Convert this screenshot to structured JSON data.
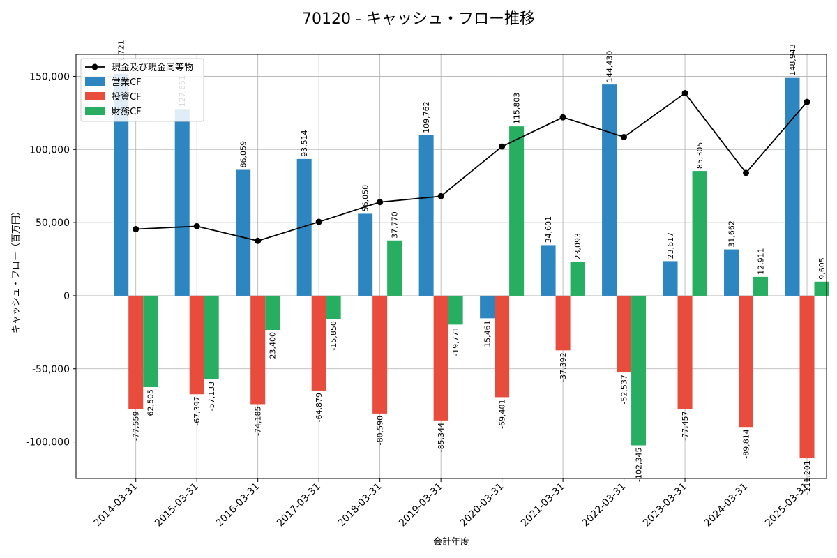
{
  "chart_data": {
    "type": "bar",
    "title": "70120 - キャッシュ・フロー推移",
    "xlabel": "会計年度",
    "ylabel": "キャッシュ・フロー（百万円）",
    "ylim": [
      -125000,
      165000
    ],
    "yticks": [
      -100000,
      -50000,
      0,
      50000,
      100000,
      150000
    ],
    "ytick_labels": [
      "-100,000",
      "-50,000",
      "0",
      "50,000",
      "100,000",
      "150,000"
    ],
    "grid": true,
    "legend_position": "top-left",
    "categories": [
      "2014-03-31",
      "2015-03-31",
      "2016-03-31",
      "2017-03-31",
      "2018-03-31",
      "2019-03-31",
      "2020-03-31",
      "2021-03-31",
      "2022-03-31",
      "2023-03-31",
      "2024-03-31",
      "2025-03-31"
    ],
    "series": [
      {
        "name": "営業CF",
        "kind": "bar",
        "color": "#2e86c1",
        "values": [
          151721,
          127651,
          86059,
          93514,
          56050,
          109762,
          -15461,
          34601,
          144430,
          23617,
          31662,
          148943
        ],
        "labels": [
          "151,721",
          "127,651",
          "86,059",
          "93,514",
          "56,050",
          "109,762",
          "-15,461",
          "34,601",
          "144,430",
          "23,617",
          "31,662",
          "148,943"
        ]
      },
      {
        "name": "投資CF",
        "kind": "bar",
        "color": "#e74c3c",
        "values": [
          -77559,
          -67397,
          -74185,
          -64879,
          -80590,
          -85344,
          -69401,
          -37392,
          -52537,
          -77457,
          -89814,
          -111201
        ],
        "labels": [
          "-77,559",
          "-67,397",
          "-74,185",
          "-64,879",
          "-80,590",
          "-85,344",
          "-69,401",
          "-37,392",
          "-52,537",
          "-77,457",
          "-89,814",
          "-111,201"
        ]
      },
      {
        "name": "財務CF",
        "kind": "bar",
        "color": "#27ae60",
        "values": [
          -62505,
          -57133,
          -23400,
          -15850,
          37770,
          -19771,
          115803,
          23093,
          -102345,
          85305,
          12911,
          9605
        ],
        "labels": [
          "-62,505",
          "-57,133",
          "-23,400",
          "-15,850",
          "37,770",
          "-19,771",
          "115,803",
          "23,093",
          "-102,345",
          "85,305",
          "12,911",
          "9,605"
        ]
      },
      {
        "name": "現金及び現金同等物",
        "kind": "line",
        "color": "#000000",
        "values": [
          45500,
          47500,
          37500,
          50500,
          64000,
          68000,
          102000,
          122000,
          108500,
          138500,
          84000,
          132500
        ]
      }
    ]
  }
}
